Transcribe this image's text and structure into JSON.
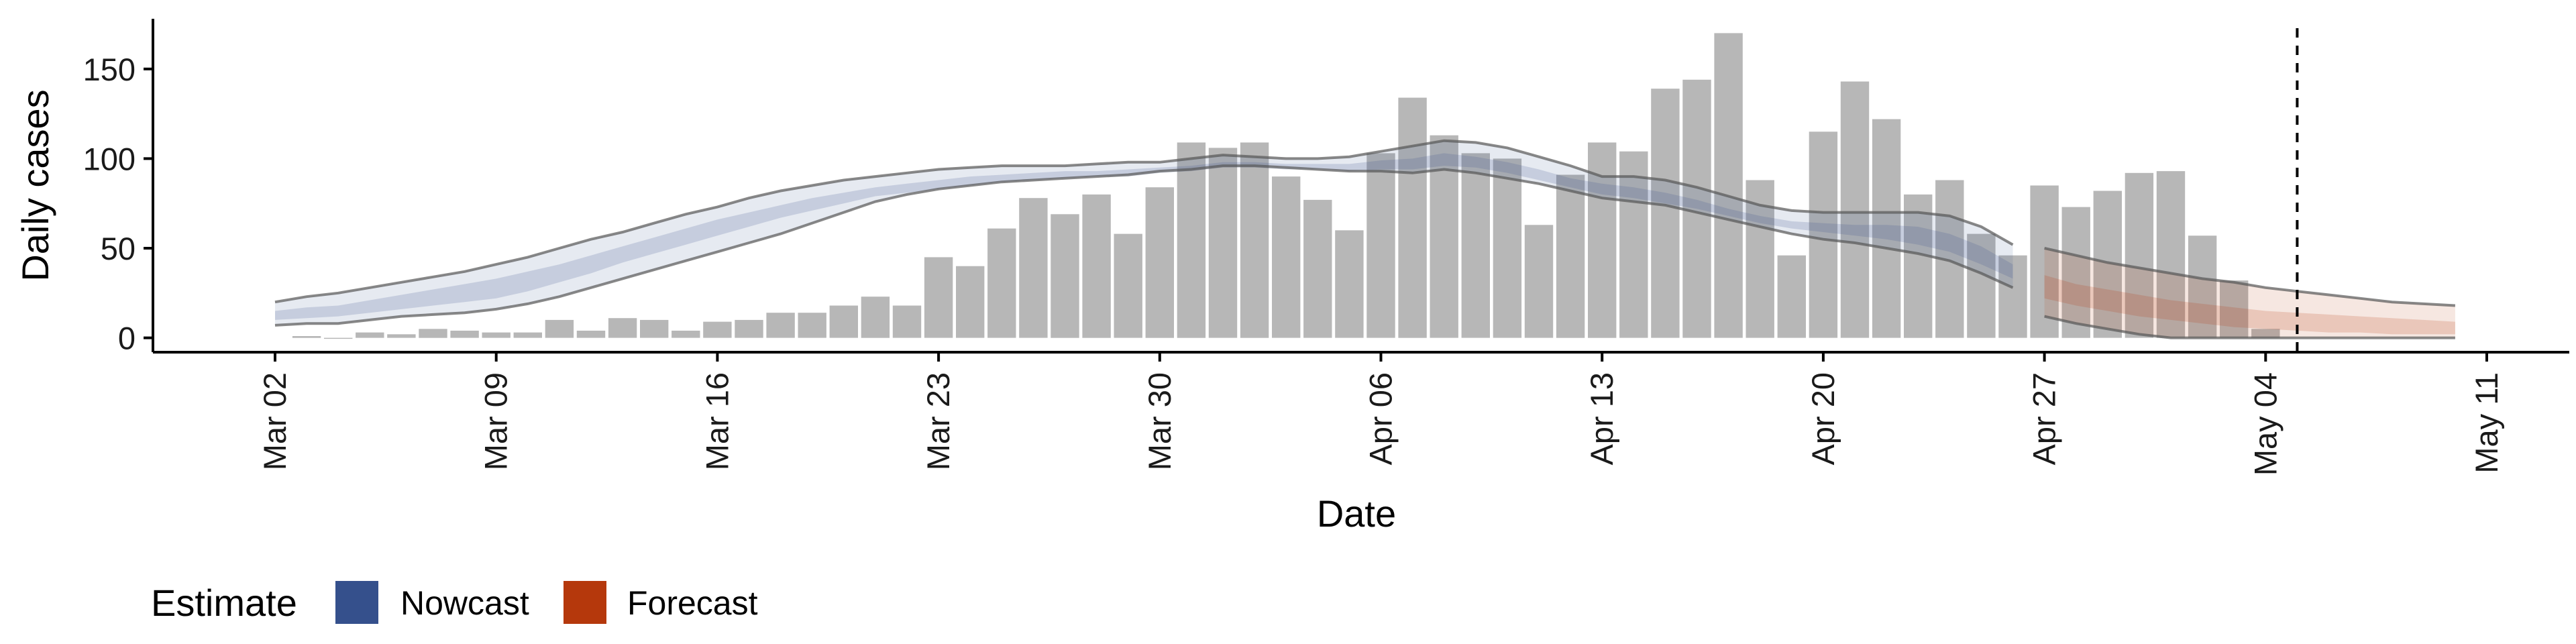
{
  "chart_data": {
    "type": "bar",
    "xlabel": "Date",
    "ylabel": "Daily cases",
    "x_ticks": [
      "Mar 02",
      "Mar 09",
      "Mar 16",
      "Mar 23",
      "Mar 30",
      "Apr 06",
      "Apr 13",
      "Apr 20",
      "Apr 27",
      "May 04",
      "May 11"
    ],
    "y_ticks": [
      "0",
      "50",
      "100",
      "150"
    ],
    "ylim": [
      -8,
      178
    ],
    "reference_line_date": "May 05",
    "bar_color": "#b7b7b7",
    "bars": {
      "dates": [
        "Mar 03",
        "Mar 04",
        "Mar 05",
        "Mar 06",
        "Mar 07",
        "Mar 08",
        "Mar 09",
        "Mar 10",
        "Mar 11",
        "Mar 12",
        "Mar 13",
        "Mar 14",
        "Mar 15",
        "Mar 16",
        "Mar 17",
        "Mar 18",
        "Mar 19",
        "Mar 20",
        "Mar 21",
        "Mar 22",
        "Mar 23",
        "Mar 24",
        "Mar 25",
        "Mar 26",
        "Mar 27",
        "Mar 28",
        "Mar 29",
        "Mar 30",
        "Mar 31",
        "Apr 01",
        "Apr 02",
        "Apr 03",
        "Apr 04",
        "Apr 05",
        "Apr 06",
        "Apr 07",
        "Apr 08",
        "Apr 09",
        "Apr 10",
        "Apr 11",
        "Apr 12",
        "Apr 13",
        "Apr 14",
        "Apr 15",
        "Apr 16",
        "Apr 17",
        "Apr 18",
        "Apr 19",
        "Apr 20",
        "Apr 21",
        "Apr 22",
        "Apr 23",
        "Apr 24",
        "Apr 25",
        "Apr 26",
        "Apr 27",
        "Apr 28",
        "Apr 29",
        "Apr 30",
        "May 01",
        "May 02",
        "May 03",
        "May 04"
      ],
      "values": [
        1,
        0,
        3,
        2,
        5,
        4,
        3,
        3,
        10,
        4,
        11,
        10,
        4,
        9,
        10,
        14,
        14,
        18,
        23,
        18,
        45,
        40,
        61,
        78,
        69,
        80,
        58,
        84,
        109,
        106,
        109,
        90,
        77,
        60,
        103,
        134,
        113,
        103,
        100,
        63,
        91,
        109,
        104,
        139,
        144,
        170,
        88,
        46,
        115,
        143,
        122,
        80,
        88,
        58,
        46,
        85,
        73,
        82,
        92,
        93,
        57,
        32,
        5
      ]
    },
    "series": [
      {
        "name": "Nowcast",
        "color": "#35508c",
        "dates": [
          "Mar 02",
          "Mar 03",
          "Mar 04",
          "Mar 05",
          "Mar 06",
          "Mar 07",
          "Mar 08",
          "Mar 09",
          "Mar 10",
          "Mar 11",
          "Mar 12",
          "Mar 13",
          "Mar 14",
          "Mar 15",
          "Mar 16",
          "Mar 17",
          "Mar 18",
          "Mar 19",
          "Mar 20",
          "Mar 21",
          "Mar 22",
          "Mar 23",
          "Mar 24",
          "Mar 25",
          "Mar 26",
          "Mar 27",
          "Mar 28",
          "Mar 29",
          "Mar 30",
          "Mar 31",
          "Apr 01",
          "Apr 02",
          "Apr 03",
          "Apr 04",
          "Apr 05",
          "Apr 06",
          "Apr 07",
          "Apr 08",
          "Apr 09",
          "Apr 10",
          "Apr 11",
          "Apr 12",
          "Apr 13",
          "Apr 14",
          "Apr 15",
          "Apr 16",
          "Apr 17",
          "Apr 18",
          "Apr 19",
          "Apr 20",
          "Apr 21",
          "Apr 22",
          "Apr 23",
          "Apr 24",
          "Apr 25",
          "Apr 26"
        ],
        "upper_90": [
          20,
          23,
          25,
          28,
          31,
          34,
          37,
          41,
          45,
          50,
          55,
          59,
          64,
          69,
          73,
          78,
          82,
          85,
          88,
          90,
          92,
          94,
          95,
          96,
          96,
          96,
          97,
          98,
          98,
          100,
          102,
          101,
          100,
          100,
          101,
          104,
          107,
          110,
          109,
          106,
          101,
          96,
          90,
          90,
          88,
          84,
          79,
          74,
          71,
          70,
          70,
          70,
          70,
          68,
          62,
          52
        ],
        "upper_50": [
          15,
          17,
          18,
          21,
          24,
          27,
          30,
          33,
          37,
          41,
          46,
          51,
          56,
          61,
          66,
          70,
          74,
          78,
          81,
          84,
          86,
          88,
          90,
          91,
          92,
          93,
          93,
          94,
          95,
          96,
          98,
          98,
          97,
          97,
          97,
          99,
          100,
          103,
          101,
          98,
          94,
          89,
          86,
          84,
          81,
          77,
          72,
          68,
          65,
          64,
          63,
          63,
          62,
          58,
          51,
          41
        ],
        "lower_50": [
          10,
          11,
          12,
          14,
          16,
          18,
          20,
          22,
          26,
          31,
          36,
          42,
          47,
          52,
          57,
          62,
          67,
          71,
          75,
          79,
          81,
          83,
          85,
          87,
          88,
          89,
          90,
          90,
          92,
          93,
          95,
          95,
          94,
          94,
          93,
          94,
          94,
          96,
          95,
          92,
          88,
          84,
          80,
          78,
          75,
          72,
          68,
          64,
          61,
          59,
          57,
          55,
          52,
          48,
          41,
          33
        ],
        "lower_90": [
          7,
          8,
          8,
          10,
          12,
          13,
          14,
          16,
          19,
          23,
          28,
          33,
          38,
          43,
          48,
          53,
          58,
          64,
          70,
          76,
          80,
          83,
          85,
          87,
          88,
          89,
          90,
          91,
          93,
          94,
          96,
          96,
          95,
          94,
          93,
          93,
          92,
          94,
          92,
          89,
          86,
          82,
          78,
          76,
          74,
          70,
          66,
          62,
          58,
          55,
          53,
          50,
          47,
          43,
          36,
          28
        ]
      },
      {
        "name": "Forecast",
        "color": "#b5380c",
        "dates": [
          "Apr 27",
          "Apr 28",
          "Apr 29",
          "Apr 30",
          "May 01",
          "May 02",
          "May 03",
          "May 04",
          "May 05",
          "May 06",
          "May 07",
          "May 08",
          "May 09",
          "May 10"
        ],
        "upper_90": [
          50,
          46,
          42,
          39,
          36,
          33,
          31,
          28,
          26,
          24,
          22,
          20,
          19,
          18
        ],
        "upper_50": [
          35,
          30,
          27,
          24,
          21,
          19,
          17,
          15,
          14,
          13,
          12,
          11,
          10,
          9
        ],
        "lower_50": [
          22,
          18,
          15,
          12,
          10,
          8,
          6,
          5,
          4,
          3,
          3,
          2,
          2,
          2
        ],
        "lower_90": [
          12,
          8,
          5,
          2,
          0,
          0,
          0,
          0,
          0,
          0,
          0,
          0,
          0,
          0
        ]
      }
    ],
    "legend": {
      "title": "Estimate",
      "items": [
        "Nowcast",
        "Forecast"
      ],
      "position": "bottom"
    }
  }
}
